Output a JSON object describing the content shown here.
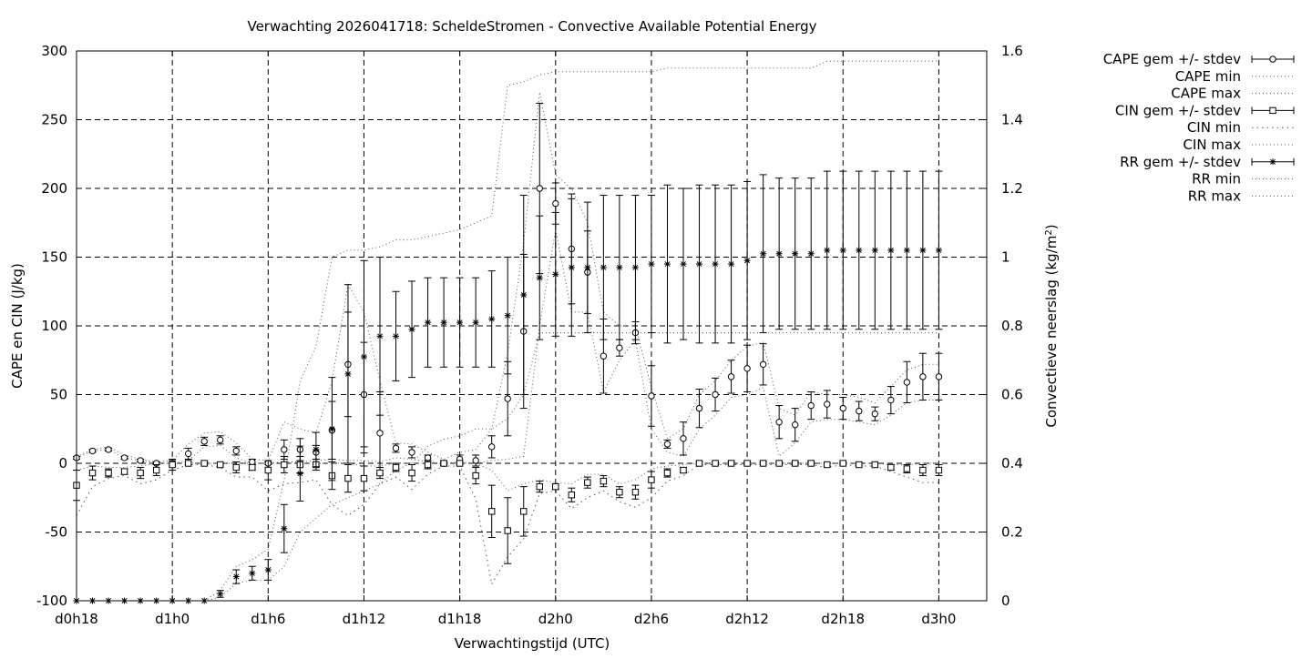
{
  "chart_data": {
    "type": "line",
    "title": "Verwachting 2026041718: ScheldeStromen - Convective Available Potential Energy",
    "xlabel": "Verwachtingstijd (UTC)",
    "ylabel": "CAPE en CIN (J/kg)",
    "y2label_prefix": "Convectieve neerslag (kg/m",
    "y2label_sup": "2",
    "y2label_suffix": ")",
    "x_range_hours": [
      18,
      75
    ],
    "ylim": [
      -100,
      300
    ],
    "y2lim": [
      0,
      1.6
    ],
    "grid": true,
    "legend_position": "outside-right",
    "x_ticks": [
      {
        "hour": 18,
        "label": "d0h18"
      },
      {
        "hour": 24,
        "label": "d1h0"
      },
      {
        "hour": 30,
        "label": "d1h6"
      },
      {
        "hour": 36,
        "label": "d1h12"
      },
      {
        "hour": 42,
        "label": "d1h18"
      },
      {
        "hour": 48,
        "label": "d2h0"
      },
      {
        "hour": 54,
        "label": "d2h6"
      },
      {
        "hour": 60,
        "label": "d2h12"
      },
      {
        "hour": 66,
        "label": "d2h18"
      },
      {
        "hour": 72,
        "label": "d3h0"
      }
    ],
    "y_ticks": [
      -100,
      -50,
      0,
      50,
      100,
      150,
      200,
      250,
      300
    ],
    "y_tick_labels": [
      "-100",
      "-50",
      "0",
      "50",
      "100",
      "150",
      "200",
      "250",
      "300"
    ],
    "y2_ticks": [
      0,
      0.2,
      0.4,
      0.6,
      0.8,
      1.0,
      1.2,
      1.4,
      1.6
    ],
    "y2_tick_labels": [
      "0",
      "0.2",
      "0.4",
      "0.6",
      "0.8",
      "1",
      "1.2",
      "1.4",
      "1.6"
    ],
    "legend": [
      "CAPE gem +/- stdev",
      "CAPE min",
      "CAPE max",
      "CIN gem +/- stdev",
      "CIN min",
      "CIN max",
      "RR gem +/- stdev",
      "RR min",
      "RR max"
    ],
    "hours": [
      18,
      19,
      20,
      21,
      22,
      23,
      24,
      25,
      26,
      27,
      28,
      29,
      30,
      31,
      32,
      33,
      34,
      35,
      36,
      37,
      38,
      39,
      40,
      41,
      42,
      43,
      44,
      45,
      46,
      47,
      48,
      49,
      50,
      51,
      52,
      53,
      54,
      55,
      56,
      57,
      58,
      59,
      60,
      61,
      62,
      63,
      64,
      65,
      66,
      67,
      68,
      69,
      70,
      71,
      72
    ],
    "series": [
      {
        "name": "CAPE gem +/- stdev",
        "axis": "y",
        "marker": "circle",
        "mean": [
          4,
          9,
          10,
          4,
          2,
          0,
          0,
          7,
          16,
          17,
          9,
          1,
          0,
          10,
          10,
          8,
          24,
          72,
          50,
          22,
          11,
          8,
          4,
          0,
          3,
          2,
          12,
          47,
          96,
          200,
          189,
          156,
          139,
          78,
          84,
          95,
          49,
          14,
          18,
          40,
          50,
          63,
          69,
          72,
          30,
          28,
          42,
          43,
          40,
          38,
          36,
          46,
          59,
          63,
          63
        ],
        "stdev": [
          1,
          1,
          1,
          1,
          1,
          1,
          2,
          4,
          3,
          3,
          3,
          2,
          1,
          7,
          8,
          5,
          21,
          38,
          38,
          30,
          3,
          4,
          2,
          2,
          3,
          4,
          8,
          27,
          56,
          62,
          15,
          40,
          30,
          27,
          6,
          8,
          22,
          3,
          12,
          14,
          12,
          12,
          17,
          15,
          12,
          12,
          10,
          10,
          8,
          7,
          5,
          10,
          15,
          17,
          17
        ]
      },
      {
        "name": "CAPE min",
        "axis": "y",
        "values": [
          4,
          9,
          10,
          4,
          2,
          0,
          0,
          2,
          12,
          13,
          4,
          0,
          0,
          1,
          1,
          2,
          3,
          2,
          2,
          1,
          4,
          3,
          1,
          0,
          1,
          0,
          2,
          3,
          5,
          100,
          170,
          110,
          110,
          52,
          75,
          90,
          25,
          8,
          5,
          25,
          35,
          48,
          50,
          55,
          5,
          15,
          30,
          32,
          32,
          30,
          28,
          35,
          44,
          46,
          46
        ]
      },
      {
        "name": "CAPE max",
        "axis": "y",
        "values": [
          5,
          10,
          12,
          6,
          3,
          1,
          2,
          14,
          22,
          23,
          15,
          3,
          2,
          30,
          25,
          22,
          60,
          130,
          110,
          60,
          15,
          14,
          8,
          3,
          8,
          10,
          25,
          80,
          160,
          270,
          210,
          200,
          175,
          110,
          100,
          100,
          55,
          18,
          25,
          50,
          60,
          75,
          85,
          88,
          40,
          35,
          52,
          50,
          50,
          48,
          44,
          56,
          68,
          72,
          72
        ]
      },
      {
        "name": "CIN gem +/- stdev",
        "axis": "y",
        "marker": "square",
        "mean": [
          -16,
          -7,
          -7,
          -6,
          -7,
          -5,
          -1,
          0,
          0,
          -1,
          -3,
          -3,
          -5,
          -1,
          -1,
          -1,
          -9,
          -11,
          -11,
          -7,
          -3,
          -7,
          -1,
          0,
          0,
          -9,
          -35,
          -49,
          -35,
          -17,
          -17,
          -23,
          -14,
          -13,
          -21,
          -21,
          -12,
          -7,
          -5,
          0,
          0,
          0,
          0,
          0,
          0,
          0,
          0,
          -1,
          0,
          -1,
          -1,
          -3,
          -4,
          -5,
          -5
        ],
        "stdev": [
          11,
          5,
          3,
          2,
          4,
          4,
          4,
          1,
          1,
          1,
          4,
          2,
          7,
          6,
          6,
          4,
          10,
          10,
          9,
          4,
          3,
          6,
          3,
          1,
          1,
          6,
          19,
          24,
          18,
          4,
          2,
          5,
          4,
          4,
          4,
          5,
          6,
          3,
          2,
          1,
          1,
          1,
          1,
          1,
          1,
          1,
          1,
          1,
          1,
          1,
          1,
          2,
          3,
          4,
          4
        ]
      },
      {
        "name": "CIN min",
        "axis": "y",
        "values": [
          -38,
          -17,
          -11,
          -9,
          -15,
          -12,
          -5,
          -1,
          -1,
          -3,
          -10,
          -10,
          -20,
          -15,
          -14,
          -12,
          -30,
          -38,
          -30,
          -15,
          -10,
          -19,
          -8,
          -2,
          -2,
          -26,
          -88,
          -68,
          -55,
          -22,
          -20,
          -33,
          -25,
          -20,
          -28,
          -32,
          -25,
          -13,
          -9,
          -1,
          -1,
          -1,
          -1,
          -1,
          -1,
          -1,
          -1,
          -3,
          -1,
          -2,
          -2,
          -6,
          -10,
          -14,
          -14
        ]
      },
      {
        "name": "CIN max",
        "axis": "y",
        "values": [
          -5,
          -2,
          -3,
          -3,
          -2,
          0,
          0,
          0,
          0,
          0,
          0,
          0,
          0,
          0,
          0,
          0,
          0,
          0,
          -2,
          -2,
          0,
          0,
          0,
          0,
          0,
          0,
          -5,
          -20,
          -15,
          -12,
          -14,
          -15,
          -8,
          -8,
          -15,
          -12,
          -4,
          -2,
          -1,
          0,
          0,
          0,
          0,
          0,
          0,
          0,
          0,
          0,
          0,
          0,
          0,
          -1,
          -1,
          0,
          0
        ]
      },
      {
        "name": "RR gem +/- stdev",
        "axis": "y2",
        "marker": "star",
        "mean": [
          0,
          0,
          0,
          0,
          0,
          0,
          0,
          0,
          0,
          0.02,
          0.07,
          0.08,
          0.09,
          0.21,
          0.37,
          0.44,
          0.5,
          0.66,
          0.71,
          0.77,
          0.77,
          0.79,
          0.81,
          0.81,
          0.81,
          0.81,
          0.82,
          0.83,
          0.89,
          0.94,
          0.95,
          0.97,
          0.97,
          0.97,
          0.97,
          0.97,
          0.98,
          0.98,
          0.98,
          0.98,
          0.98,
          0.98,
          0.99,
          1.01,
          1.01,
          1.01,
          1.01,
          1.02,
          1.02,
          1.02,
          1.02,
          1.02,
          1.02,
          1.02,
          1.02
        ],
        "stdev": [
          0,
          0,
          0,
          0,
          0,
          0,
          0,
          0,
          0,
          0.01,
          0.02,
          0.02,
          0.03,
          0.07,
          0.08,
          0.05,
          0.15,
          0.26,
          0.28,
          0.23,
          0.13,
          0.14,
          0.13,
          0.13,
          0.13,
          0.13,
          0.14,
          0.17,
          0.29,
          0.18,
          0.18,
          0.2,
          0.19,
          0.21,
          0.21,
          0.21,
          0.2,
          0.23,
          0.22,
          0.23,
          0.23,
          0.23,
          0.23,
          0.23,
          0.22,
          0.22,
          0.22,
          0.23,
          0.23,
          0.23,
          0.23,
          0.23,
          0.23,
          0.23,
          0.23
        ]
      },
      {
        "name": "RR min",
        "axis": "y2",
        "values": [
          0,
          0,
          0,
          0,
          0,
          0,
          0,
          0,
          0,
          0.01,
          0.05,
          0.06,
          0.06,
          0.1,
          0.2,
          0.24,
          0.28,
          0.3,
          0.32,
          0.34,
          0.38,
          0.4,
          0.45,
          0.47,
          0.48,
          0.5,
          0.5,
          0.53,
          0.6,
          0.78,
          0.78,
          0.78,
          0.78,
          0.78,
          0.78,
          0.78,
          0.78,
          0.78,
          0.78,
          0.78,
          0.78,
          0.78,
          0.78,
          0.78,
          0.78,
          0.78,
          0.78,
          0.78,
          0.78,
          0.78,
          0.78,
          0.78,
          0.78,
          0.78,
          0.78
        ]
      },
      {
        "name": "RR max",
        "axis": "y2",
        "values": [
          0,
          0,
          0,
          0,
          0,
          0,
          0,
          0,
          0,
          0.03,
          0.1,
          0.12,
          0.15,
          0.35,
          0.64,
          0.74,
          1.0,
          1.02,
          1.02,
          1.03,
          1.05,
          1.05,
          1.06,
          1.07,
          1.08,
          1.1,
          1.12,
          1.5,
          1.51,
          1.53,
          1.54,
          1.54,
          1.54,
          1.54,
          1.54,
          1.54,
          1.54,
          1.55,
          1.55,
          1.55,
          1.55,
          1.55,
          1.55,
          1.55,
          1.55,
          1.55,
          1.55,
          1.57,
          1.57,
          1.57,
          1.57,
          1.57,
          1.57,
          1.57,
          1.57
        ]
      }
    ]
  }
}
